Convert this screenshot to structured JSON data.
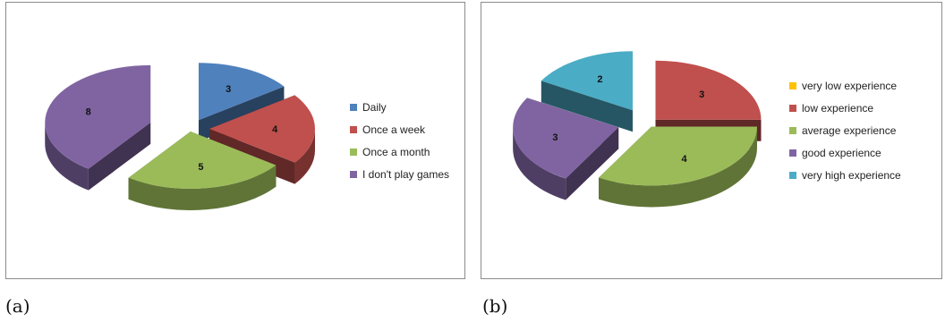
{
  "chart_data": [
    {
      "type": "pie",
      "panel_label": "(a)",
      "categories": [
        "Daily",
        "Once a week",
        "Once a month",
        "I don't play games"
      ],
      "values": [
        3,
        4,
        5,
        8
      ],
      "colors": [
        "#4f81bd",
        "#c0504d",
        "#9bbb59",
        "#8064a2"
      ],
      "style": "3d-exploded",
      "legend_position": "right"
    },
    {
      "type": "pie",
      "panel_label": "(b)",
      "categories": [
        "very low experience",
        "low experience",
        "average experience",
        "good experience",
        "very high experience"
      ],
      "values": [
        0,
        3,
        4,
        3,
        2
      ],
      "colors": [
        "#ffc000",
        "#c0504d",
        "#9bbb59",
        "#8064a2",
        "#4bacc6"
      ],
      "style": "3d-exploded",
      "legend_position": "right"
    }
  ]
}
